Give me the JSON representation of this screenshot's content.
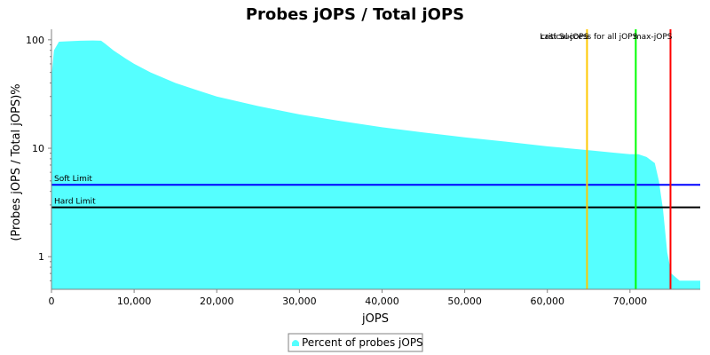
{
  "chart_data": {
    "type": "area",
    "title": "Probes jOPS / Total jOPS",
    "xlabel": "jOPS",
    "ylabel": "(Probes jOPS / Total jOPS)%",
    "y_scale": "log",
    "xlim": [
      0,
      78500
    ],
    "ylim": [
      0.5,
      125
    ],
    "x_ticks": [
      0,
      10000,
      20000,
      30000,
      40000,
      50000,
      60000,
      70000
    ],
    "x_tick_labels": [
      "0",
      "10,000",
      "20,000",
      "30,000",
      "40,000",
      "50,000",
      "60,000",
      "70,000"
    ],
    "y_ticks": [
      1,
      10,
      100
    ],
    "y_tick_labels": [
      "1",
      "10",
      "100"
    ],
    "grid": false,
    "legend": "bottom",
    "series": [
      {
        "name": "Percent of probes jOPS",
        "color": "#55ffff",
        "x": [
          0,
          300,
          900,
          2000,
          3500,
          5000,
          6000,
          6500,
          7500,
          9000,
          10000,
          12000,
          15000,
          17500,
          20000,
          25000,
          30000,
          35000,
          40000,
          45000,
          50000,
          55000,
          60000,
          65000,
          68000,
          70000,
          71000,
          72000,
          73000,
          73500,
          74000,
          74500,
          75000,
          76000,
          78500
        ],
        "y": [
          45,
          80,
          96,
          97,
          98,
          98.5,
          98,
          92,
          80,
          67,
          60,
          50,
          40,
          34.5,
          30,
          24.5,
          20.5,
          17.8,
          15.6,
          14,
          12.6,
          11.5,
          10.4,
          9.6,
          9.1,
          8.8,
          8.8,
          8.3,
          7.3,
          5,
          2.7,
          1.1,
          0.7,
          0.6,
          0.6
        ]
      }
    ],
    "horizontal_lines": [
      {
        "label": "Soft Limit",
        "y": 4.6,
        "color": "#0000ff"
      },
      {
        "label": "Hard Limit",
        "y": 2.85,
        "color": "#000000"
      }
    ],
    "vertical_lines": [
      {
        "label": "critical-jOPS",
        "x": 64800,
        "color": "#ffc800"
      },
      {
        "label": "Last Success for all jOPS",
        "x": 70700,
        "color": "#00ff00"
      },
      {
        "label": "max-jOPS",
        "x": 74900,
        "color": "#ff0000"
      }
    ]
  }
}
